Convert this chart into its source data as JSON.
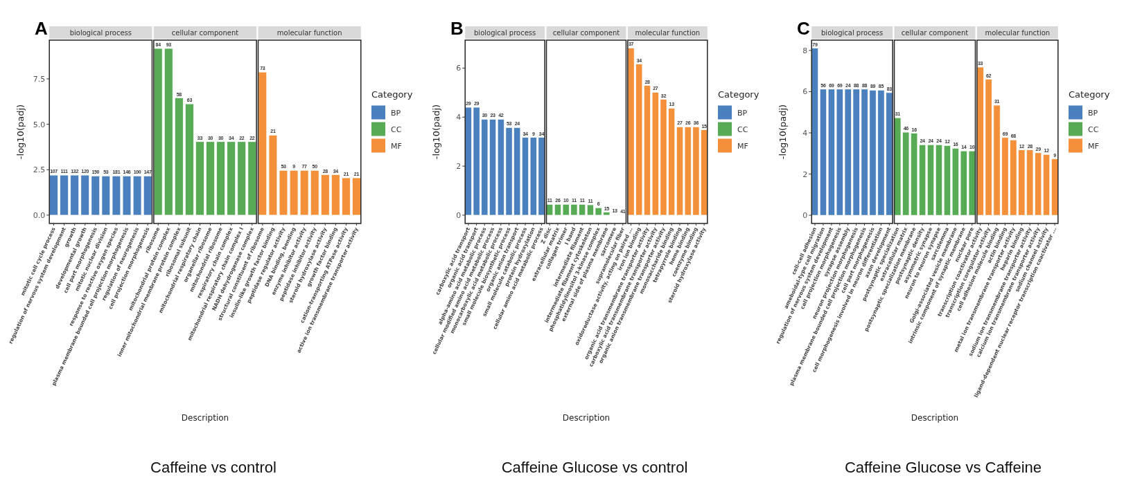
{
  "chart_data": [
    {
      "type": "bar",
      "ylabel": "-log10(padj)",
      "xlabel": "Description",
      "legend_title": "Category",
      "legend": "right",
      "ylim": [
        -0.46,
        9.63
      ],
      "yticks": [
        {
          "value": 0,
          "label": "0.0"
        },
        2.5,
        {
          "value": 5,
          "label": "5.0"
        },
        7.5
      ],
      "categories": [
        "mitotic cell cycle process",
        "regulation of nervous system development",
        "growth",
        "developmental growth",
        "cell part morphogenesis",
        "mitotic nuclear division",
        "response to reactive oxygen species",
        "plasma membrane bounded cell projection morphogenesis",
        "regulation of neurogenesis",
        "cell projection morphogenesis",
        "ribosome",
        "mitochondrial protein complex",
        "inner mitochondrial membrane protein complex",
        "ribosomal subunit",
        "mitochondrial respiratory chain",
        "organellar ribosome",
        "mitochondrial ribosome",
        "respiratory chain complex",
        "mitochondrial respiratory chain complex I",
        "NADH dehydrogenase complex",
        "structural constituent of ribosome",
        "insulin-like growth factor binding",
        "peptidase regulator activity",
        "DNA binding, bending",
        "enzyme inhibitor activity",
        "peptidase inhibitor activity",
        "steroid hydroxylase activity",
        "growth factor binding",
        "cation-transporting ATPase activity",
        "active ion transmembrane transporter activity"
      ],
      "series": [
        {
          "name": "BP",
          "color": "#4a80bd",
          "values": [
            2.2,
            2.2,
            2.2,
            2.2,
            2.15,
            2.15,
            2.15,
            2.15,
            2.15,
            2.15,
            null,
            null,
            null,
            null,
            null,
            null,
            null,
            null,
            null,
            null,
            null,
            null,
            null,
            null,
            null,
            null,
            null,
            null,
            null,
            null
          ]
        },
        {
          "name": "CC",
          "color": "#57ab55",
          "values": [
            null,
            null,
            null,
            null,
            null,
            null,
            null,
            null,
            null,
            null,
            9.17,
            9.17,
            6.45,
            6.12,
            4.04,
            4.04,
            4.04,
            4.04,
            4.04,
            4.04,
            null,
            null,
            null,
            null,
            null,
            null,
            null,
            null,
            null,
            null
          ]
        },
        {
          "name": "MF",
          "color": "#f5903a",
          "values": [
            null,
            null,
            null,
            null,
            null,
            null,
            null,
            null,
            null,
            null,
            null,
            null,
            null,
            null,
            null,
            null,
            null,
            null,
            null,
            null,
            7.87,
            4.4,
            2.46,
            2.46,
            2.46,
            2.46,
            2.22,
            2.22,
            2.05,
            2.05
          ]
        }
      ],
      "annotations": [
        "A",
        "biological process",
        "cellular component",
        "molecular function",
        "Caffeine vs control",
        {
          "text": "107",
          "x": "mitotic cell cycle process",
          "y": 2.2
        },
        {
          "text": "111",
          "x": "regulation of nervous system development",
          "y": 2.2
        },
        {
          "text": "132",
          "x": "growth",
          "y": 2.2
        },
        {
          "text": "120",
          "x": "developmental growth",
          "y": 2.2
        },
        {
          "text": "150",
          "x": "cell part morphogenesis",
          "y": 2.15
        },
        {
          "text": "53",
          "x": "mitotic nuclear division",
          "y": 2.15
        },
        {
          "text": "181",
          "x": "response to reactive oxygen species",
          "y": 2.15
        },
        {
          "text": "146",
          "x": "plasma membrane bounded cell projection morphogenesis",
          "y": 2.15
        },
        {
          "text": "100",
          "x": "regulation of neurogenesis",
          "y": 2.15
        },
        {
          "text": "147",
          "x": "cell projection morphogenesis",
          "y": 2.15
        },
        {
          "text": "84",
          "x": "ribosome",
          "y": 9.17
        },
        {
          "text": "93",
          "x": "mitochondrial protein complex",
          "y": 9.17
        },
        {
          "text": "58",
          "x": "inner mitochondrial membrane protein complex",
          "y": 6.45
        },
        {
          "text": "63",
          "x": "ribosomal subunit",
          "y": 6.12
        },
        {
          "text": "33",
          "x": "mitochondrial respiratory chain",
          "y": 4.04
        },
        {
          "text": "30",
          "x": "organellar ribosome",
          "y": 4.04
        },
        {
          "text": "30",
          "x": "mitochondrial ribosome",
          "y": 4.04
        },
        {
          "text": "34",
          "x": "respiratory chain complex",
          "y": 4.04
        },
        {
          "text": "22",
          "x": "mitochondrial respiratory chain complex I",
          "y": 4.04
        },
        {
          "text": "22",
          "x": "NADH dehydrogenase complex",
          "y": 4.04
        },
        {
          "text": "73",
          "x": "structural constituent of ribosome",
          "y": 7.87
        },
        {
          "text": "21",
          "x": "insulin-like growth factor binding",
          "y": 4.4
        },
        {
          "text": "53",
          "x": "peptidase regulator activity",
          "y": 2.46
        },
        {
          "text": "9",
          "x": "DNA binding, bending",
          "y": 2.46
        },
        {
          "text": "77",
          "x": "enzyme inhibitor activity",
          "y": 2.46
        },
        {
          "text": "50",
          "x": "peptidase inhibitor activity",
          "y": 2.46
        },
        {
          "text": "28",
          "x": "steroid hydroxylase activity",
          "y": 2.22
        },
        {
          "text": "34",
          "x": "growth factor binding",
          "y": 2.22
        },
        {
          "text": "21",
          "x": "cation-transporting ATPase activity",
          "y": 2.05
        },
        {
          "text": "21",
          "x": "active ion transmembrane transporter activity",
          "y": 2.05
        }
      ]
    },
    {
      "type": "bar",
      "ylabel": "-log10(padj)",
      "xlabel": "Description",
      "legend_title": "Category",
      "legend": "right",
      "ylim": [
        -0.34,
        7.14
      ],
      "yticks": [
        0,
        2,
        4,
        6
      ],
      "categories": [
        "carboxylic acid transport",
        "organic acid transport",
        "alpha-amino acid metabolic process",
        "cellular modified amino acid metabolic process",
        "monocarboxylic acid metabolic process",
        "small molecule biosynthetic process",
        "organic anion transport",
        "small molecule catabolic process",
        "protein hydroxylation",
        "cellular amino acid metabolic process",
        "Z disc",
        "extracellular matrix",
        "collagen trimer",
        "I band",
        "intermediate filament",
        "intermediate filament cytoskeleton",
        "phosphatidylinositol 3-kinase complex",
        "external side of plasma membrane",
        "sarcomere",
        "supramolecular fiber",
        "oxidoreductase activity, acting on paired ...",
        "iron ion binding",
        "organic acid transmembrane transporter activity",
        "carboxylic acid transmembrane transporter activity",
        "organic anion transmembrane transporter activity",
        "monosaccharide binding",
        "tetrapyrrole binding",
        "heme binding",
        "coenzyme binding",
        "steroid hydroxylase activity"
      ],
      "series": [
        {
          "name": "BP",
          "color": "#4a80bd",
          "values": [
            4.4,
            4.4,
            3.91,
            3.91,
            3.91,
            3.57,
            3.57,
            3.17,
            3.17,
            3.17,
            null,
            null,
            null,
            null,
            null,
            null,
            null,
            null,
            null,
            null,
            null,
            null,
            null,
            null,
            null,
            null,
            null,
            null,
            null,
            null
          ]
        },
        {
          "name": "CC",
          "color": "#57ab55",
          "values": [
            null,
            null,
            null,
            null,
            null,
            null,
            null,
            null,
            null,
            null,
            0.44,
            0.44,
            0.44,
            0.44,
            0.44,
            0.42,
            0.3,
            0.12,
            0.02,
            0.01,
            null,
            null,
            null,
            null,
            null,
            null,
            null,
            null,
            null,
            null
          ]
        },
        {
          "name": "MF",
          "color": "#f5903a",
          "values": [
            null,
            null,
            null,
            null,
            null,
            null,
            null,
            null,
            null,
            null,
            null,
            null,
            null,
            null,
            null,
            null,
            null,
            null,
            null,
            null,
            6.82,
            6.16,
            5.29,
            5.01,
            4.72,
            4.36,
            3.6,
            3.6,
            3.6,
            3.48
          ]
        }
      ],
      "annotations": [
        "B",
        "biological process",
        "cellular component",
        "molecular function",
        "Caffeine Glucose vs control",
        {
          "text": "29",
          "x": "carboxylic acid transport",
          "y": 4.4
        },
        {
          "text": "29",
          "x": "organic acid transport",
          "y": 4.4
        },
        {
          "text": "30",
          "x": "alpha-amino acid metabolic process",
          "y": 3.91
        },
        {
          "text": "23",
          "x": "cellular modified amino acid metabolic process",
          "y": 3.91
        },
        {
          "text": "42",
          "x": "monocarboxylic acid metabolic process",
          "y": 3.91
        },
        {
          "text": "53",
          "x": "small molecule biosynthetic process",
          "y": 3.57
        },
        {
          "text": "24",
          "x": "organic anion transport",
          "y": 3.57
        },
        {
          "text": "34",
          "x": "small molecule catabolic process",
          "y": 3.17
        },
        {
          "text": "9",
          "x": "protein hydroxylation",
          "y": 3.17
        },
        {
          "text": "34",
          "x": "cellular amino acid metabolic process",
          "y": 3.17
        },
        {
          "text": "11",
          "x": "Z disc",
          "y": 0.44
        },
        {
          "text": "26",
          "x": "extracellular matrix",
          "y": 0.44
        },
        {
          "text": "10",
          "x": "collagen trimer",
          "y": 0.44
        },
        {
          "text": "11",
          "x": "I band",
          "y": 0.44
        },
        {
          "text": "11",
          "x": "intermediate filament",
          "y": 0.44
        },
        {
          "text": "11",
          "x": "intermediate filament cytoskeleton",
          "y": 0.42
        },
        {
          "text": "6",
          "x": "phosphatidylinositol 3-kinase complex",
          "y": 0.3
        },
        {
          "text": "15",
          "x": "external side of plasma membrane",
          "y": 0.12
        },
        {
          "text": "13",
          "x": "sarcomere",
          "y": 0.02
        },
        {
          "text": "41",
          "x": "supramolecular fiber",
          "y": 0.01
        },
        {
          "text": "37",
          "x": "oxidoreductase activity, acting on paired ...",
          "y": 6.82
        },
        {
          "text": "34",
          "x": "iron ion binding",
          "y": 6.16
        },
        {
          "text": "28",
          "x": "organic acid transmembrane transporter activity",
          "y": 5.29
        },
        {
          "text": "27",
          "x": "carboxylic acid transmembrane transporter activity",
          "y": 5.01
        },
        {
          "text": "32",
          "x": "organic anion transmembrane transporter activity",
          "y": 4.72
        },
        {
          "text": "13",
          "x": "monosaccharide binding",
          "y": 4.36
        },
        {
          "text": "27",
          "x": "tetrapyrrole binding",
          "y": 3.6
        },
        {
          "text": "26",
          "x": "heme binding",
          "y": 3.6
        },
        {
          "text": "36",
          "x": "coenzyme binding",
          "y": 3.6
        },
        {
          "text": "15",
          "x": "steroid hydroxylase activity",
          "y": 3.48
        }
      ]
    },
    {
      "type": "bar",
      "ylabel": "-log10(padj)",
      "xlabel": "Description",
      "legend_title": "Category",
      "legend": "right",
      "ylim": [
        -0.4,
        8.5
      ],
      "yticks": [
        0,
        2,
        4,
        6,
        8
      ],
      "categories": [
        "cell-cell adhesion",
        "ameboidal-type cell migration",
        "regulation of nervous system development",
        "cell projection morphogenesis",
        "synapse assembly",
        "neuron projection morphogenesis",
        "plasma membrane bounded cell projection morphogenesis",
        "cell part morphogenesis",
        "cell morphogenesis involved in neuron differentiation",
        "axon development",
        "postsynaptic specialization",
        "extracellular matrix",
        "postsynaptic specialization membrane",
        "postsynaptic density",
        "asymmetric synapse",
        "neuron to neuron synapse",
        "sarcolemma",
        "Golgi-associated vesicle membrane",
        "intrinsic component of synaptic membrane",
        "nuclear pore",
        "transcription coactivator activity",
        "transcription coregulator activity",
        "cell adhesion molecule binding",
        "actin binding",
        "metal ion transmembrane transporter activity",
        "heparin binding",
        "sodium ion transmembrane transporter activity",
        "calcium ion transmembrane transporter activity",
        "sodium channel activity",
        "ligand-dependent nuclear receptor transcription coactivator ..."
      ],
      "series": [
        {
          "name": "BP",
          "color": "#4a80bd",
          "values": [
            8.11,
            6.12,
            6.12,
            6.12,
            6.12,
            6.12,
            6.12,
            6.07,
            6.07,
            5.95,
            null,
            null,
            null,
            null,
            null,
            null,
            null,
            null,
            null,
            null,
            null,
            null,
            null,
            null,
            null,
            null,
            null,
            null,
            null,
            null
          ]
        },
        {
          "name": "CC",
          "color": "#57ab55",
          "values": [
            null,
            null,
            null,
            null,
            null,
            null,
            null,
            null,
            null,
            null,
            4.73,
            4.03,
            3.98,
            3.42,
            3.42,
            3.42,
            3.38,
            3.25,
            3.12,
            3.12,
            null,
            null,
            null,
            null,
            null,
            null,
            null,
            null,
            null,
            null
          ]
        },
        {
          "name": "MF",
          "color": "#f5903a",
          "values": [
            null,
            null,
            null,
            null,
            null,
            null,
            null,
            null,
            null,
            null,
            null,
            null,
            null,
            null,
            null,
            null,
            null,
            null,
            null,
            null,
            7.19,
            6.6,
            5.34,
            3.77,
            3.65,
            3.17,
            3.17,
            3.03,
            2.95,
            2.73
          ]
        }
      ],
      "annotations": [
        "C",
        "biological process",
        "cellular component",
        "molecular function",
        "Caffeine Glucose vs Caffeine",
        {
          "text": "79",
          "x": "cell-cell adhesion",
          "y": 8.11
        },
        {
          "text": "56",
          "x": "ameboidal-type cell migration",
          "y": 6.12
        },
        {
          "text": "69",
          "x": "regulation of nervous system development",
          "y": 6.12
        },
        {
          "text": "69",
          "x": "cell projection morphogenesis",
          "y": 6.12
        },
        {
          "text": "24",
          "x": "synapse assembly",
          "y": 6.12
        },
        {
          "text": "88",
          "x": "neuron projection morphogenesis",
          "y": 6.12
        },
        {
          "text": "88",
          "x": "plasma membrane bounded cell projection morphogenesis",
          "y": 6.12
        },
        {
          "text": "89",
          "x": "cell part morphogenesis",
          "y": 6.07
        },
        {
          "text": "85",
          "x": "cell morphogenesis involved in neuron differentiation",
          "y": 6.07
        },
        {
          "text": "83",
          "x": "axon development",
          "y": 5.95
        },
        {
          "text": "31",
          "x": "postsynaptic specialization",
          "y": 4.73
        },
        {
          "text": "46",
          "x": "extracellular matrix",
          "y": 4.03
        },
        {
          "text": "16",
          "x": "postsynaptic specialization membrane",
          "y": 3.98
        },
        {
          "text": "24",
          "x": "postsynaptic density",
          "y": 3.42
        },
        {
          "text": "24",
          "x": "asymmetric synapse",
          "y": 3.42
        },
        {
          "text": "24",
          "x": "neuron to neuron synapse",
          "y": 3.42
        },
        {
          "text": "12",
          "x": "sarcolemma",
          "y": 3.38
        },
        {
          "text": "16",
          "x": "Golgi-associated vesicle membrane",
          "y": 3.25
        },
        {
          "text": "14",
          "x": "intrinsic component of synaptic membrane",
          "y": 3.12
        },
        {
          "text": "10",
          "x": "nuclear pore",
          "y": 3.12
        },
        {
          "text": "33",
          "x": "transcription coactivator activity",
          "y": 7.19
        },
        {
          "text": "62",
          "x": "transcription coregulator activity",
          "y": 6.6
        },
        {
          "text": "31",
          "x": "cell adhesion molecule binding",
          "y": 5.34
        },
        {
          "text": "69",
          "x": "actin binding",
          "y": 3.77
        },
        {
          "text": "68",
          "x": "metal ion transmembrane transporter activity",
          "y": 3.65
        },
        {
          "text": "12",
          "x": "heparin binding",
          "y": 3.17
        },
        {
          "text": "28",
          "x": "sodium ion transmembrane transporter activity",
          "y": 3.17
        },
        {
          "text": "29",
          "x": "calcium ion transmembrane transporter activity",
          "y": 3.03
        },
        {
          "text": "12",
          "x": "sodium channel activity",
          "y": 2.95
        },
        {
          "text": "9",
          "x": "ligand-dependent nuclear receptor transcription coactivator ...",
          "y": 2.73
        }
      ]
    }
  ]
}
